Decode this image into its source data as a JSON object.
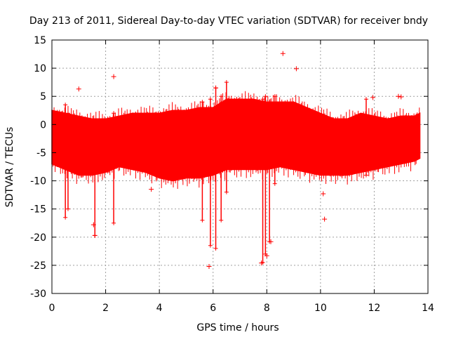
{
  "colors": {
    "series": "#ff0000",
    "grid": "#a0a0a0",
    "axis": "#000000",
    "background": "#ffffff"
  },
  "chart_data": {
    "type": "scatter",
    "title": "Day 213 of 2011, Sidereal Day-to-day VTEC variation (SDTVAR) for receiver bndy",
    "xlabel": "GPS time / hours",
    "ylabel": "SDTVAR / TECUs",
    "xlim": [
      0,
      14
    ],
    "ylim": [
      -30,
      15
    ],
    "xticks": [
      0,
      2,
      4,
      6,
      8,
      10,
      12,
      14
    ],
    "yticks": [
      -30,
      -25,
      -20,
      -15,
      -10,
      -5,
      0,
      5,
      10,
      15
    ],
    "xtick_labels": [
      "0",
      "2",
      "4",
      "6",
      "8",
      "10",
      "12",
      "14"
    ],
    "ytick_labels": [
      "-30",
      "-25",
      "-20",
      "-15",
      "-10",
      "-5",
      "0",
      "5",
      "10",
      "15"
    ],
    "grid": true,
    "marker": "+",
    "series": [
      {
        "name": "SDTVAR",
        "band_hours": [
          0,
          0.5,
          1,
          1.5,
          2,
          2.5,
          3,
          3.5,
          4,
          4.5,
          5,
          5.5,
          6,
          6.5,
          7,
          7.5,
          8,
          8.5,
          9,
          9.5,
          10,
          10.5,
          11,
          11.5,
          12,
          12.5,
          13,
          13.5,
          13.7
        ],
        "band_upper": [
          2.5,
          2,
          1.5,
          1,
          1,
          1.5,
          2,
          2,
          2,
          2.5,
          2.5,
          3,
          3,
          4.5,
          4.5,
          4.5,
          4,
          4,
          4,
          3,
          2,
          1,
          1,
          2,
          1.5,
          1,
          1.5,
          1.5,
          2
        ],
        "band_lower": [
          -7,
          -8,
          -9,
          -9,
          -8.5,
          -7.5,
          -8,
          -8.5,
          -9.5,
          -10,
          -9.5,
          -9.5,
          -9,
          -8,
          -8,
          -8,
          -8,
          -7.5,
          -8,
          -8.5,
          -9,
          -9,
          -9,
          -8.5,
          -8,
          -7.5,
          -7,
          -6.5,
          -6
        ],
        "spikes": [
          {
            "x": 0.5,
            "min": -16.5,
            "max": 3.5
          },
          {
            "x": 0.6,
            "min": -15,
            "max": 2
          },
          {
            "x": 1.6,
            "min": -19.7,
            "max": 0
          },
          {
            "x": 2.3,
            "min": -17.5,
            "max": 2
          },
          {
            "x": 5.6,
            "min": -17,
            "max": 4
          },
          {
            "x": 5.9,
            "min": -21.5,
            "max": 4.5
          },
          {
            "x": 6.1,
            "min": -22,
            "max": 6.5
          },
          {
            "x": 6.3,
            "min": -17,
            "max": 5
          },
          {
            "x": 6.5,
            "min": -12,
            "max": 7.5
          },
          {
            "x": 7.85,
            "min": -24.5,
            "max": 4.5
          },
          {
            "x": 7.95,
            "min": -23,
            "max": 5
          },
          {
            "x": 8.1,
            "min": -20.8,
            "max": 4
          },
          {
            "x": 8.3,
            "min": -10.5,
            "max": 5
          },
          {
            "x": 11.7,
            "min": -9,
            "max": 4.5
          }
        ],
        "outliers": [
          {
            "x": 8.6,
            "y": 12.6
          },
          {
            "x": 9.1,
            "y": 9.9
          },
          {
            "x": 2.3,
            "y": 8.5
          },
          {
            "x": 6.1,
            "y": 6.5
          },
          {
            "x": 1.0,
            "y": 6.3
          },
          {
            "x": 12.9,
            "y": 5.0
          },
          {
            "x": 13.0,
            "y": 4.9
          },
          {
            "x": 11.95,
            "y": 4.8
          },
          {
            "x": 3.7,
            "y": -11.5
          },
          {
            "x": 10.1,
            "y": -12.3
          },
          {
            "x": 10.15,
            "y": -16.8
          },
          {
            "x": 1.55,
            "y": -17.8
          },
          {
            "x": 1.6,
            "y": -19.7
          },
          {
            "x": 5.85,
            "y": -25.2
          },
          {
            "x": 7.8,
            "y": -24.6
          },
          {
            "x": 8.0,
            "y": -23.3
          },
          {
            "x": 8.15,
            "y": -20.8
          }
        ]
      }
    ]
  }
}
